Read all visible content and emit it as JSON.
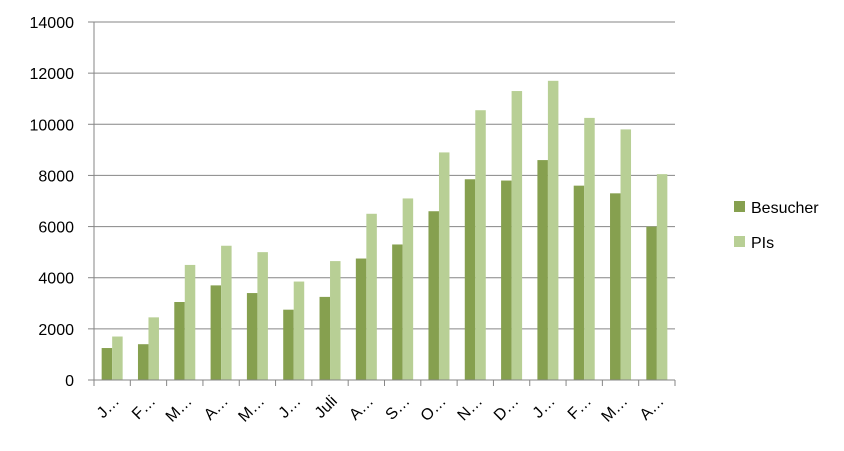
{
  "chart_data": {
    "type": "bar",
    "title": "",
    "xlabel": "",
    "ylabel": "",
    "ylim": [
      0,
      14000
    ],
    "yticks": [
      0,
      2000,
      4000,
      6000,
      8000,
      10000,
      12000,
      14000
    ],
    "grid": true,
    "legend_position": "right",
    "categories": [
      "J…",
      "F…",
      "M…",
      "A…",
      "M…",
      "J…",
      "Juli",
      "A…",
      "S…",
      "O…",
      "N…",
      "D…",
      "J…",
      "F…",
      "M…",
      "A…"
    ],
    "series": [
      {
        "name": "Besucher",
        "color": "#86a04f",
        "values": [
          1250,
          1400,
          3050,
          3700,
          3400,
          2750,
          3250,
          4750,
          5300,
          6600,
          7850,
          7800,
          8600,
          7600,
          7300,
          6000
        ]
      },
      {
        "name": "PIs",
        "color": "#b8cf95",
        "values": [
          1700,
          2450,
          4500,
          5250,
          5000,
          3850,
          4650,
          6500,
          7100,
          8900,
          10550,
          11300,
          11700,
          10250,
          9800,
          8050
        ]
      }
    ]
  }
}
